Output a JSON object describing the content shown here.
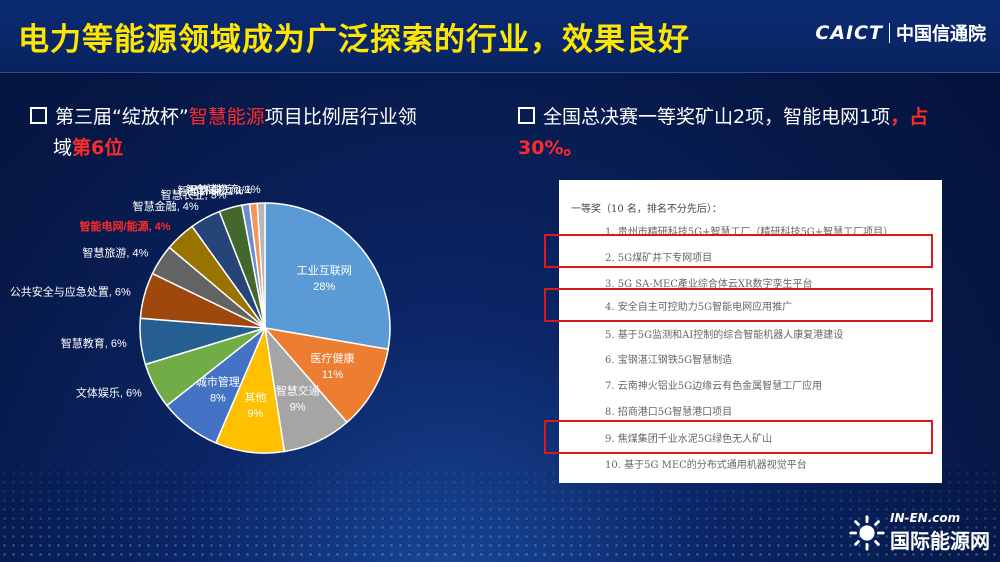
{
  "header": {
    "title": "电力等能源领域成为广泛探索的行业，效果良好",
    "logo_en": "CAICT",
    "logo_cn": "中国信通院"
  },
  "left_bullet": {
    "part1": "第三届“绽放杯”",
    "part2": "智慧能源",
    "part3": "项目比例居行业领",
    "part4": "域",
    "part5": "第6位"
  },
  "right_bullet": {
    "part1": "全国总决赛一等奖矿山2项，智能电网1项",
    "part2": "，占",
    "part3": "30%。"
  },
  "chart_data": {
    "type": "pie",
    "slices": [
      {
        "label": "工业互联网",
        "value": 28,
        "value_label": "28%",
        "color": "#5b9bd5"
      },
      {
        "label": "医疗健康",
        "value": 11,
        "value_label": "11%",
        "color": "#ed7d31"
      },
      {
        "label": "智慧交通",
        "value": 9,
        "value_label": "9%",
        "color": "#a5a5a5"
      },
      {
        "label": "其他",
        "value": 9,
        "value_label": "9%",
        "color": "#ffc000"
      },
      {
        "label": "城市管理",
        "value": 8,
        "value_label": "8%",
        "color": "#4472c4"
      },
      {
        "label": "文体娱乐",
        "value": 6,
        "value_label": "6%",
        "color": "#70ad47"
      },
      {
        "label": "智慧教育",
        "value": 6,
        "value_label": "6%",
        "color": "#255e91"
      },
      {
        "label": "公共安全与应急处置",
        "value": 6,
        "value_label": "6%",
        "color": "#9e480e"
      },
      {
        "label": "智慧旅游",
        "value": 4,
        "value_label": "4%",
        "color": "#636363"
      },
      {
        "label": "智能电网/能源",
        "value": 4,
        "value_label": "4%",
        "color": "#997300",
        "highlight": true
      },
      {
        "label": "智慧金融",
        "value": 4,
        "value_label": "4%",
        "color": "#264478"
      },
      {
        "label": "智慧农业",
        "value": 3,
        "value_label": "3%",
        "color": "#43682b"
      },
      {
        "label": "智慧环保",
        "value": 1,
        "value_label": "1%",
        "color": "#698ed0"
      },
      {
        "label": "智慧家庭",
        "value": 1,
        "value_label": "1%",
        "color": "#f1975a"
      },
      {
        "label": "仓储物流",
        "value": 1,
        "value_label": "1%",
        "color": "#b7b7b7"
      }
    ],
    "highlight_color": "#ff2a2a"
  },
  "award": {
    "head": "一等奖（10 名，排名不分先后）：",
    "items": [
      "1. 贵州市精研科技5G+智慧工厂（精研科技5G+智慧工厂项目）",
      "2. 5G煤矿井下专网项目",
      "3. 5G SA-MEC產业综合体云XR数字孪生平台",
      "4. 安全自主可控助力5G智能电网应用推广",
      "5. 基于5G监测和AI控制的综合智能机器人康复港建设",
      "6. 宝钢湛江钢铁5G智慧制造",
      "7. 云南神火铝业5G边缘云有色金属智慧工厂应用",
      "8. 招商港口5G智慧港口项目",
      "9. 焦煤集团千业水泥5G绿色无人矿山",
      "10. 基于5G MEC的分布式通用机器视觉平台"
    ]
  },
  "watermark": {
    "en": "IN-EN.com",
    "cn": "国际能源网"
  }
}
